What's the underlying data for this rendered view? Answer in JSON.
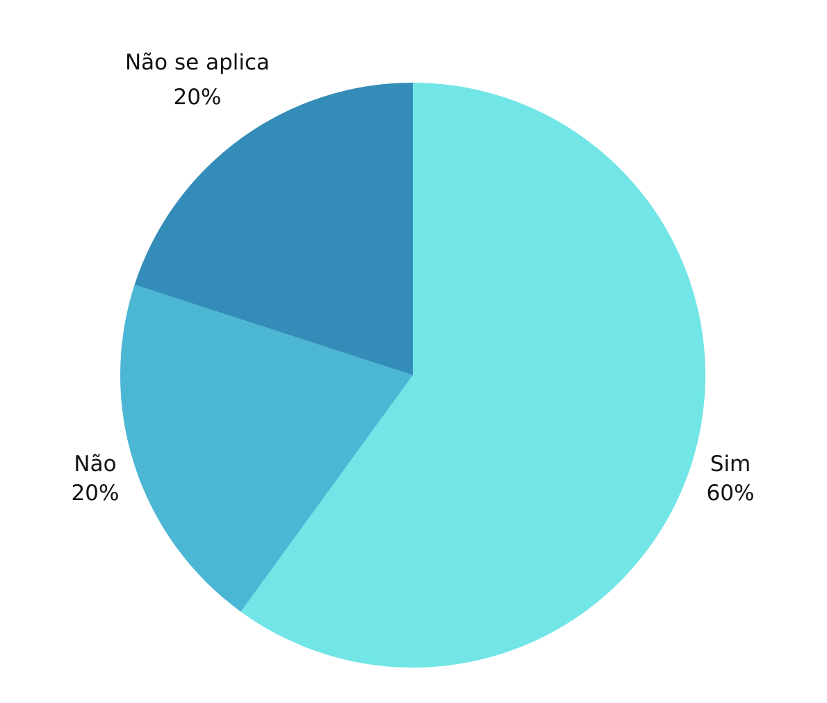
{
  "chart_data": {
    "type": "pie",
    "start": "top",
    "direction": "clockwise",
    "slices": [
      {
        "label": "Sim",
        "value": 60,
        "percent_label": "60%",
        "color": "#72E5E6"
      },
      {
        "label": "Não",
        "value": 20,
        "percent_label": "20%",
        "color": "#4BB7D4"
      },
      {
        "label": "Não se aplica",
        "value": 20,
        "percent_label": "20%",
        "color": "#348CB8"
      }
    ]
  }
}
